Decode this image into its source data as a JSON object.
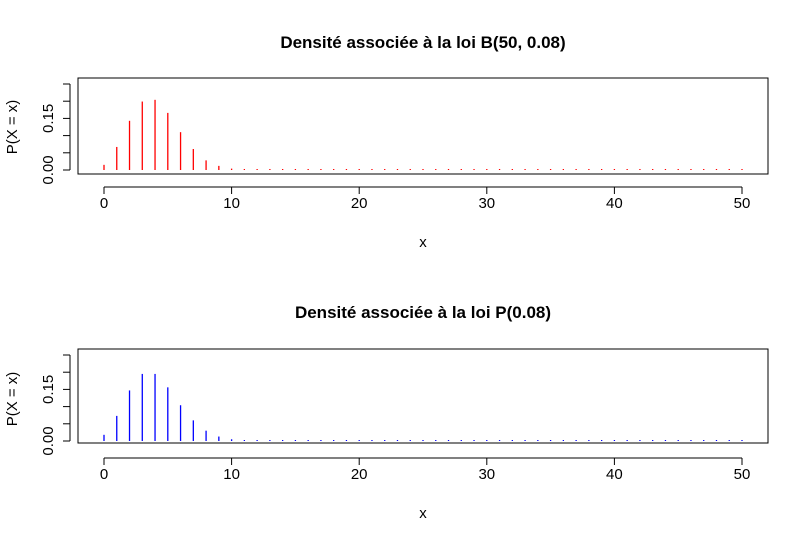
{
  "chart_data": [
    {
      "type": "bar",
      "title": "Densité associée à la loi B(50, 0.08)",
      "xlabel": "x",
      "ylabel": "P(X = x)",
      "color": "#ff0000",
      "xlim": [
        0,
        50
      ],
      "ylim": [
        0,
        0.27
      ],
      "x_ticks": [
        "0",
        "10",
        "20",
        "30",
        "40",
        "50"
      ],
      "y_ticks": [
        "0.00",
        "0.15"
      ],
      "y_minor_ticks": [
        0.0,
        0.05,
        0.1,
        0.15,
        0.2,
        0.25
      ],
      "x": [
        0,
        1,
        2,
        3,
        4,
        5,
        6,
        7,
        8,
        9,
        10,
        11,
        12,
        13,
        14,
        15,
        16,
        17,
        18,
        19,
        20,
        21,
        22,
        23,
        24,
        25,
        26,
        27,
        28,
        29,
        30,
        31,
        32,
        33,
        34,
        35,
        36,
        37,
        38,
        39,
        40,
        41,
        42,
        43,
        44,
        45,
        46,
        47,
        48,
        49,
        50
      ],
      "values": [
        0.015,
        0.067,
        0.143,
        0.199,
        0.204,
        0.166,
        0.11,
        0.061,
        0.028,
        0.012,
        0.004,
        0.001,
        0.0003,
        0,
        0,
        0,
        0,
        0,
        0,
        0,
        0,
        0,
        0,
        0,
        0,
        0,
        0,
        0,
        0,
        0,
        0,
        0,
        0,
        0,
        0,
        0,
        0,
        0,
        0,
        0,
        0,
        0,
        0,
        0,
        0,
        0,
        0,
        0,
        0,
        0,
        0
      ]
    },
    {
      "type": "bar",
      "title": "Densité associée à la loi P(0.08)",
      "xlabel": "x",
      "ylabel": "P(X = x)",
      "color": "#0000ff",
      "xlim": [
        0,
        50
      ],
      "ylim": [
        0,
        0.27
      ],
      "x_ticks": [
        "0",
        "10",
        "20",
        "30",
        "40",
        "50"
      ],
      "y_ticks": [
        "0.00",
        "0.15"
      ],
      "y_minor_ticks": [
        0.0,
        0.05,
        0.1,
        0.15,
        0.2,
        0.25
      ],
      "x": [
        0,
        1,
        2,
        3,
        4,
        5,
        6,
        7,
        8,
        9,
        10,
        11,
        12,
        13,
        14,
        15,
        16,
        17,
        18,
        19,
        20,
        21,
        22,
        23,
        24,
        25,
        26,
        27,
        28,
        29,
        30,
        31,
        32,
        33,
        34,
        35,
        36,
        37,
        38,
        39,
        40,
        41,
        42,
        43,
        44,
        45,
        46,
        47,
        48,
        49,
        50
      ],
      "values": [
        0.018,
        0.073,
        0.147,
        0.195,
        0.195,
        0.156,
        0.104,
        0.06,
        0.03,
        0.013,
        0.005,
        0.002,
        0.0006,
        0,
        0,
        0,
        0,
        0,
        0,
        0,
        0,
        0,
        0,
        0,
        0,
        0,
        0,
        0,
        0,
        0,
        0,
        0,
        0,
        0,
        0,
        0,
        0,
        0,
        0,
        0,
        0,
        0,
        0,
        0,
        0,
        0,
        0,
        0,
        0,
        0,
        0
      ]
    }
  ]
}
